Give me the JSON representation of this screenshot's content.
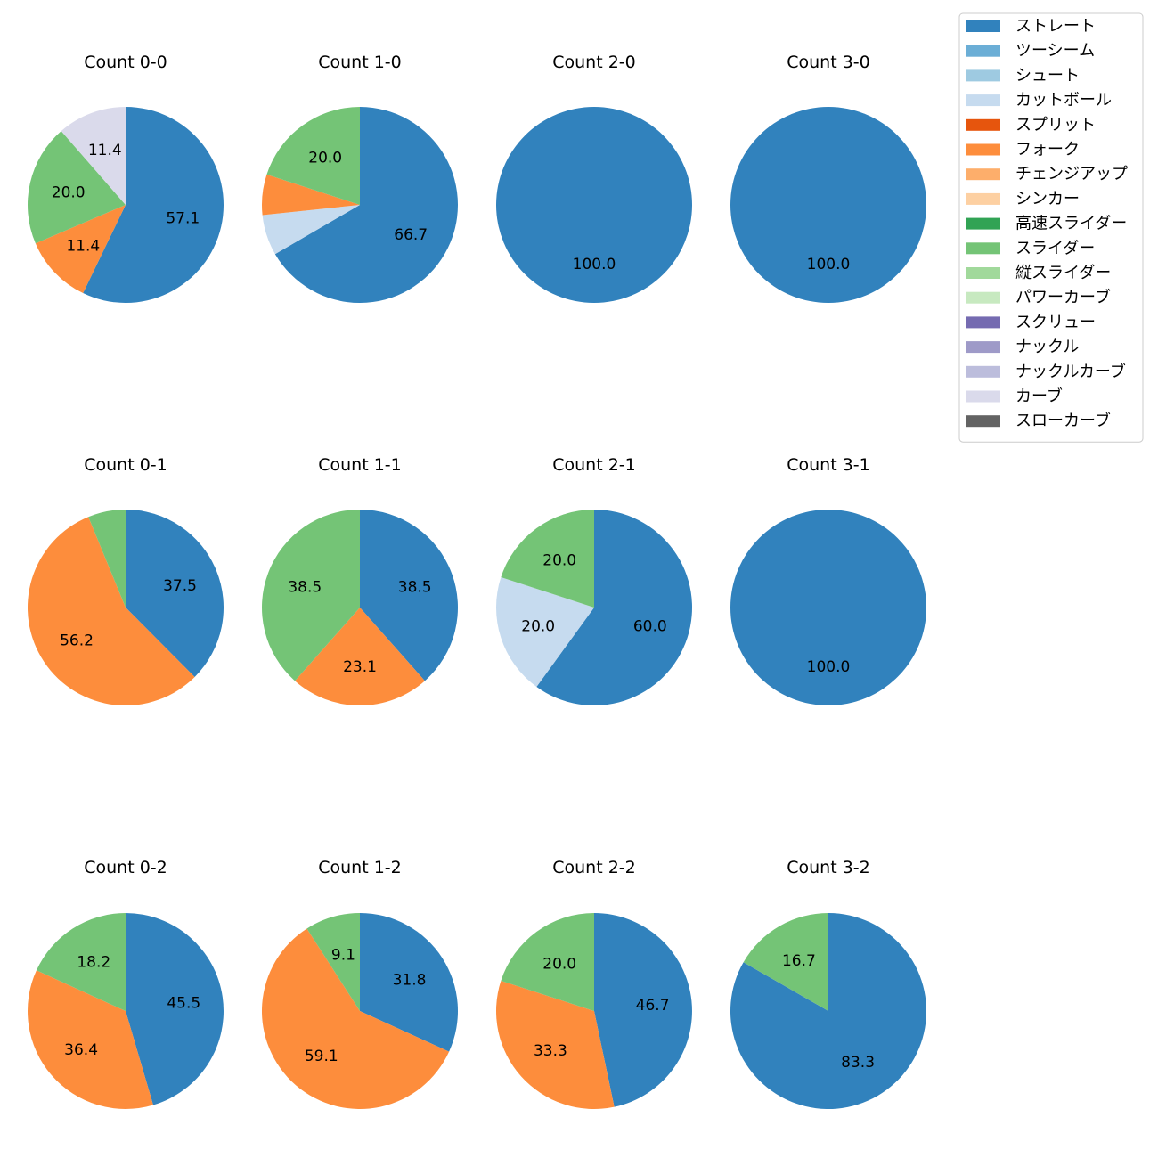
{
  "chart_data": {
    "type": "pie",
    "legend": {
      "placement": "top-right",
      "entries": [
        {
          "label": "ストレート",
          "color": "#3182bd"
        },
        {
          "label": "ツーシーム",
          "color": "#6baed6"
        },
        {
          "label": "シュート",
          "color": "#9ecae1"
        },
        {
          "label": "カットボール",
          "color": "#c6dbef"
        },
        {
          "label": "スプリット",
          "color": "#e6550d"
        },
        {
          "label": "フォーク",
          "color": "#fd8d3c"
        },
        {
          "label": "チェンジアップ",
          "color": "#fdae6b"
        },
        {
          "label": "シンカー",
          "color": "#fdd0a2"
        },
        {
          "label": "高速スライダー",
          "color": "#31a354"
        },
        {
          "label": "スライダー",
          "color": "#74c476"
        },
        {
          "label": "縦スライダー",
          "color": "#a1d99b"
        },
        {
          "label": "パワーカーブ",
          "color": "#c7e9c0"
        },
        {
          "label": "スクリュー",
          "color": "#756bb1"
        },
        {
          "label": "ナックル",
          "color": "#9e9ac8"
        },
        {
          "label": "ナックルカーブ",
          "color": "#bcbddc"
        },
        {
          "label": "カーブ",
          "color": "#dadaeb"
        },
        {
          "label": "スローカーブ",
          "color": "#636363"
        }
      ]
    },
    "pies": [
      {
        "title": "Count 0-0",
        "slices": [
          {
            "label": "ストレート",
            "value": 57.1
          },
          {
            "label": "フォーク",
            "value": 11.4
          },
          {
            "label": "スライダー",
            "value": 20.0
          },
          {
            "label": "カーブ",
            "value": 11.4
          }
        ]
      },
      {
        "title": "Count 1-0",
        "slices": [
          {
            "label": "ストレート",
            "value": 66.7
          },
          {
            "label": "カットボール",
            "value": 6.7
          },
          {
            "label": "フォーク",
            "value": 6.7
          },
          {
            "label": "スライダー",
            "value": 20.0
          }
        ]
      },
      {
        "title": "Count 2-0",
        "slices": [
          {
            "label": "ストレート",
            "value": 100.0
          }
        ]
      },
      {
        "title": "Count 3-0",
        "slices": [
          {
            "label": "ストレート",
            "value": 100.0
          }
        ]
      },
      {
        "title": "Count 0-1",
        "slices": [
          {
            "label": "ストレート",
            "value": 37.5
          },
          {
            "label": "フォーク",
            "value": 56.2
          },
          {
            "label": "スライダー",
            "value": 6.2
          }
        ]
      },
      {
        "title": "Count 1-1",
        "slices": [
          {
            "label": "ストレート",
            "value": 38.5
          },
          {
            "label": "フォーク",
            "value": 23.1
          },
          {
            "label": "スライダー",
            "value": 38.5
          }
        ]
      },
      {
        "title": "Count 2-1",
        "slices": [
          {
            "label": "ストレート",
            "value": 60.0
          },
          {
            "label": "カットボール",
            "value": 20.0
          },
          {
            "label": "スライダー",
            "value": 20.0
          }
        ]
      },
      {
        "title": "Count 3-1",
        "slices": [
          {
            "label": "ストレート",
            "value": 100.0
          }
        ]
      },
      {
        "title": "Count 0-2",
        "slices": [
          {
            "label": "ストレート",
            "value": 45.5
          },
          {
            "label": "フォーク",
            "value": 36.4
          },
          {
            "label": "スライダー",
            "value": 18.2
          }
        ]
      },
      {
        "title": "Count 1-2",
        "slices": [
          {
            "label": "ストレート",
            "value": 31.8
          },
          {
            "label": "フォーク",
            "value": 59.1
          },
          {
            "label": "スライダー",
            "value": 9.1
          }
        ]
      },
      {
        "title": "Count 2-2",
        "slices": [
          {
            "label": "ストレート",
            "value": 46.7
          },
          {
            "label": "フォーク",
            "value": 33.3
          },
          {
            "label": "スライダー",
            "value": 20.0
          }
        ]
      },
      {
        "title": "Count 3-2",
        "slices": [
          {
            "label": "ストレート",
            "value": 83.3
          },
          {
            "label": "スライダー",
            "value": 16.7
          }
        ]
      }
    ]
  }
}
